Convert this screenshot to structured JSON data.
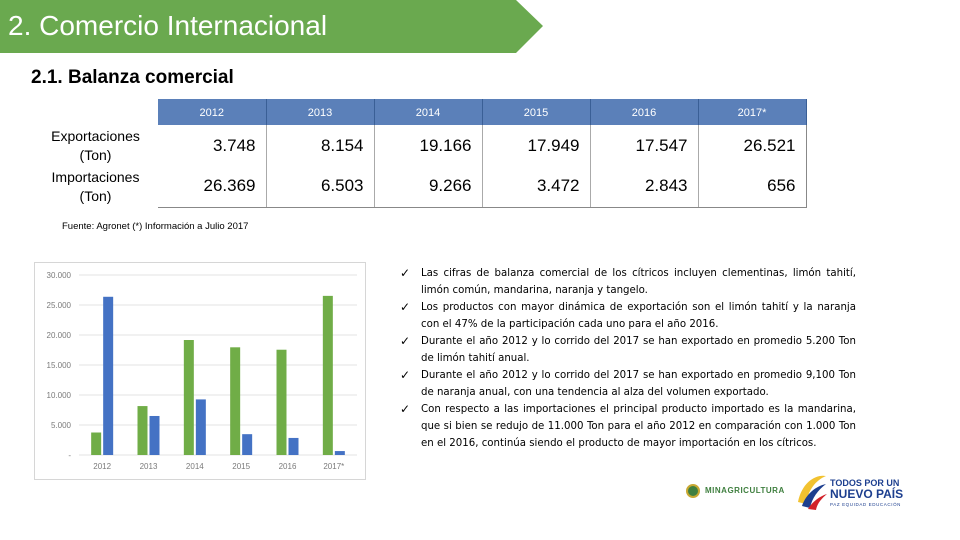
{
  "header": {
    "title": "2. Comercio Internacional",
    "bar_color": "#6aa94f"
  },
  "section": {
    "title": "2.1. Balanza comercial"
  },
  "table": {
    "years": [
      "2012",
      "2013",
      "2014",
      "2015",
      "2016",
      "2017*"
    ],
    "rows": [
      {
        "label": "Exportaciones (Ton)",
        "values": [
          "3.748",
          "8.154",
          "19.166",
          "17.949",
          "17.547",
          "26.521"
        ]
      },
      {
        "label": "Importaciones (Ton)",
        "values": [
          "26.369",
          "6.503",
          "9.266",
          "3.472",
          "2.843",
          "656"
        ]
      }
    ],
    "header_color": "#5b80b9"
  },
  "source_note": "Fuente: Agronet (*) Información a Julio 2017",
  "chart_data": {
    "type": "bar",
    "categories": [
      "2012",
      "2013",
      "2014",
      "2015",
      "2016",
      "2017*"
    ],
    "series": [
      {
        "values": [
          3748,
          8154,
          19166,
          17949,
          17547,
          26521
        ],
        "color": "#70ad47"
      },
      {
        "values": [
          26369,
          6503,
          9266,
          3472,
          2843,
          656
        ],
        "color": "#4472c4"
      }
    ],
    "y_ticks": [
      "30.000",
      "25.000",
      "20.000",
      "15.000",
      "10.000",
      "5.000",
      "-"
    ],
    "ylim": [
      0,
      30000
    ],
    "grid": true,
    "legend": "none"
  },
  "bullets": [
    "Las cifras de balanza comercial de los cítricos incluyen clementinas, limón tahití, limón común, mandarina, naranja y tangelo.",
    "Los productos con mayor dinámica de exportación son el limón tahití y la naranja con el 47% de la participación cada uno para el año 2016.",
    "Durante el año 2012 y lo corrido del 2017 se han exportado en promedio 5.200 Ton de limón tahití anual.",
    "Durante el año 2012 y lo corrido del 2017 se han exportado en promedio 9,100 Ton de naranja anual, con una tendencia al alza del volumen exportado.",
    "Con respecto a las importaciones el principal producto importado es la mandarina, que si bien se redujo de 11.000 Ton para el año 2012 en comparación con 1.000 Ton en el 2016, continúa siendo el producto de mayor importación en los cítricos."
  ],
  "bullet_icon": "checkmark-icon",
  "logos": {
    "ministry": "MINAGRICULTURA",
    "country_line1": "TODOS POR UN",
    "country_line2": "NUEVO PAÍS",
    "country_line3": "PAZ  EQUIDAD  EDUCACIÓN"
  }
}
